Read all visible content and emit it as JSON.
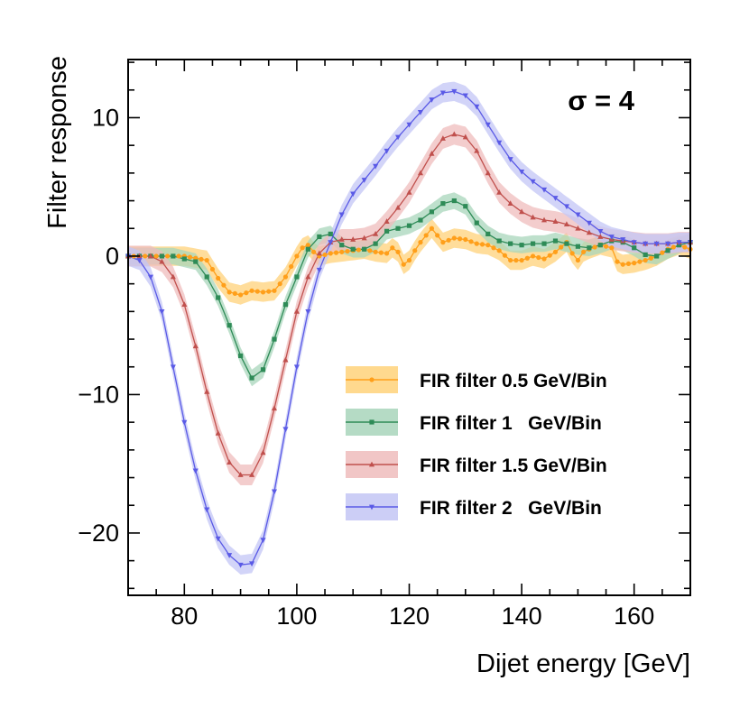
{
  "chart_data": {
    "type": "line",
    "xlabel": "Dijet energy [GeV]",
    "ylabel": "Filter response",
    "xlim": [
      70,
      170
    ],
    "ylim": [
      -24.5,
      14.2
    ],
    "xticks": [
      80,
      100,
      120,
      140,
      160
    ],
    "xtick_labels": [
      "80",
      "100",
      "120",
      "140",
      "160"
    ],
    "yticks": [
      10,
      0,
      -10,
      -20
    ],
    "ytick_labels": [
      "10",
      "0",
      "−10",
      "−20"
    ],
    "annotation": "σ = 4",
    "legend_position": "center-right",
    "series": [
      {
        "name": "FIR filter 0.5 GeV/Bin",
        "color": "#ff9f1a",
        "marker": "circle",
        "band_color": "#ffd27a",
        "band_half_width": 0.7,
        "points": [
          [
            70,
            0
          ],
          [
            80,
            0
          ],
          [
            84,
            -0.3
          ],
          [
            86,
            -1.6
          ],
          [
            88,
            -2.6
          ],
          [
            90,
            -2.8
          ],
          [
            92,
            -2.5
          ],
          [
            94,
            -2.6
          ],
          [
            96,
            -2.5
          ],
          [
            98,
            -1.5
          ],
          [
            100,
            0
          ],
          [
            101,
            0.6
          ],
          [
            102,
            0.8
          ],
          [
            103,
            0.3
          ],
          [
            104,
            0
          ],
          [
            106,
            0.2
          ],
          [
            108,
            0.3
          ],
          [
            110,
            0.4
          ],
          [
            112,
            0.5
          ],
          [
            114,
            0.3
          ],
          [
            116,
            0.2
          ],
          [
            117,
            0.6
          ],
          [
            118,
            0.3
          ],
          [
            119,
            -0.6
          ],
          [
            120,
            -0.3
          ],
          [
            121,
            0.4
          ],
          [
            122,
            1
          ],
          [
            123,
            1.5
          ],
          [
            124,
            2
          ],
          [
            125,
            1.5
          ],
          [
            126,
            1
          ],
          [
            128,
            1.3
          ],
          [
            130,
            1.2
          ],
          [
            132,
            0.9
          ],
          [
            134,
            0.8
          ],
          [
            136,
            0.4
          ],
          [
            138,
            -0.3
          ],
          [
            140,
            -0.3
          ],
          [
            142,
            0
          ],
          [
            144,
            -0.2
          ],
          [
            146,
            0.3
          ],
          [
            148,
            1
          ],
          [
            149,
            0.2
          ],
          [
            150,
            -0.3
          ],
          [
            151,
            0.3
          ],
          [
            152,
            0.5
          ],
          [
            154,
            0.8
          ],
          [
            156,
            0.6
          ],
          [
            157,
            -0.4
          ],
          [
            158,
            -0.6
          ],
          [
            160,
            -0.5
          ],
          [
            162,
            -0.3
          ],
          [
            164,
            0
          ],
          [
            166,
            0.5
          ],
          [
            168,
            0.8
          ],
          [
            170,
            0.5
          ]
        ]
      },
      {
        "name": "FIR filter 1   GeV/Bin",
        "color": "#2e8b57",
        "marker": "square",
        "band_color": "#a8d5bb",
        "band_half_width": 0.6,
        "points": [
          [
            70,
            0
          ],
          [
            78,
            0
          ],
          [
            82,
            -0.4
          ],
          [
            84,
            -1.5
          ],
          [
            86,
            -3
          ],
          [
            88,
            -5
          ],
          [
            90,
            -7.2
          ],
          [
            92,
            -8.8
          ],
          [
            94,
            -8.2
          ],
          [
            96,
            -6
          ],
          [
            98,
            -3.5
          ],
          [
            100,
            -1.5
          ],
          [
            102,
            0.5
          ],
          [
            104,
            1.4
          ],
          [
            106,
            1.6
          ],
          [
            108,
            0.8
          ],
          [
            110,
            0.5
          ],
          [
            112,
            0.5
          ],
          [
            114,
            0.9
          ],
          [
            116,
            1.8
          ],
          [
            118,
            2
          ],
          [
            120,
            2.2
          ],
          [
            122,
            2.6
          ],
          [
            124,
            3.2
          ],
          [
            126,
            3.8
          ],
          [
            128,
            4
          ],
          [
            130,
            3.6
          ],
          [
            132,
            2.4
          ],
          [
            134,
            1.6
          ],
          [
            136,
            1.1
          ],
          [
            138,
            0.9
          ],
          [
            140,
            0.8
          ],
          [
            142,
            0.9
          ],
          [
            144,
            0.9
          ],
          [
            146,
            1.1
          ],
          [
            148,
            0.9
          ],
          [
            150,
            0.7
          ],
          [
            152,
            0.6
          ],
          [
            154,
            0.8
          ],
          [
            156,
            1.1
          ],
          [
            158,
            1.0
          ],
          [
            160,
            0.6
          ],
          [
            162,
            0.1
          ],
          [
            164,
            0
          ],
          [
            166,
            0.4
          ],
          [
            168,
            0.8
          ],
          [
            170,
            1
          ]
        ]
      },
      {
        "name": "FIR filter 1.5 GeV/Bin",
        "color": "#c0504d",
        "marker": "triangle-up",
        "band_color": "#efbcbc",
        "band_half_width": 0.75,
        "points": [
          [
            70,
            0
          ],
          [
            74,
            0
          ],
          [
            76,
            -0.4
          ],
          [
            78,
            -1.5
          ],
          [
            80,
            -3.5
          ],
          [
            82,
            -6.5
          ],
          [
            84,
            -9.8
          ],
          [
            86,
            -12.8
          ],
          [
            88,
            -14.9
          ],
          [
            90,
            -15.8
          ],
          [
            92,
            -15.8
          ],
          [
            94,
            -14.2
          ],
          [
            96,
            -11
          ],
          [
            98,
            -7.5
          ],
          [
            100,
            -4
          ],
          [
            102,
            -1.5
          ],
          [
            104,
            0.2
          ],
          [
            106,
            1
          ],
          [
            108,
            1.2
          ],
          [
            110,
            1.2
          ],
          [
            112,
            1.3
          ],
          [
            114,
            1.6
          ],
          [
            116,
            2.5
          ],
          [
            118,
            3.5
          ],
          [
            120,
            4.6
          ],
          [
            122,
            6
          ],
          [
            124,
            7.4
          ],
          [
            126,
            8.5
          ],
          [
            128,
            8.8
          ],
          [
            130,
            8.6
          ],
          [
            132,
            7.6
          ],
          [
            134,
            6
          ],
          [
            136,
            4.6
          ],
          [
            138,
            3.8
          ],
          [
            140,
            3.2
          ],
          [
            142,
            2.8
          ],
          [
            144,
            2.6
          ],
          [
            146,
            2.5
          ],
          [
            148,
            2.3
          ],
          [
            150,
            2
          ],
          [
            152,
            1.7
          ],
          [
            154,
            1.4
          ],
          [
            156,
            1.2
          ],
          [
            158,
            1.1
          ],
          [
            160,
            1
          ],
          [
            162,
            0.9
          ],
          [
            164,
            0.9
          ],
          [
            166,
            0.9
          ],
          [
            168,
            1
          ],
          [
            170,
            1
          ]
        ]
      },
      {
        "name": "FIR filter 2   GeV/Bin",
        "color": "#5a5ae6",
        "marker": "triangle-down",
        "band_color": "#c3c6f5",
        "band_half_width": 0.7,
        "points": [
          [
            70,
            0
          ],
          [
            72,
            -0.3
          ],
          [
            74,
            -1.5
          ],
          [
            76,
            -4
          ],
          [
            78,
            -8
          ],
          [
            80,
            -12
          ],
          [
            82,
            -15.5
          ],
          [
            84,
            -18.3
          ],
          [
            86,
            -20.4
          ],
          [
            88,
            -21.6
          ],
          [
            90,
            -22.3
          ],
          [
            92,
            -22.2
          ],
          [
            94,
            -20.5
          ],
          [
            96,
            -17
          ],
          [
            98,
            -12.5
          ],
          [
            100,
            -8
          ],
          [
            102,
            -4
          ],
          [
            104,
            -1
          ],
          [
            106,
            1
          ],
          [
            108,
            3
          ],
          [
            110,
            4.5
          ],
          [
            112,
            5.5
          ],
          [
            114,
            6.5
          ],
          [
            116,
            7.6
          ],
          [
            118,
            8.6
          ],
          [
            120,
            9.5
          ],
          [
            122,
            10.4
          ],
          [
            124,
            11.3
          ],
          [
            126,
            11.8
          ],
          [
            128,
            11.9
          ],
          [
            130,
            11.6
          ],
          [
            132,
            10.8
          ],
          [
            134,
            9.5
          ],
          [
            136,
            8.2
          ],
          [
            138,
            7
          ],
          [
            140,
            6.1
          ],
          [
            142,
            5.4
          ],
          [
            144,
            4.8
          ],
          [
            146,
            4.2
          ],
          [
            148,
            3.6
          ],
          [
            150,
            3
          ],
          [
            152,
            2.4
          ],
          [
            154,
            1.8
          ],
          [
            156,
            1.4
          ],
          [
            158,
            1.2
          ],
          [
            160,
            1
          ],
          [
            162,
            0.9
          ],
          [
            164,
            0.9
          ],
          [
            166,
            0.9
          ],
          [
            168,
            1
          ],
          [
            170,
            1
          ]
        ]
      }
    ]
  }
}
